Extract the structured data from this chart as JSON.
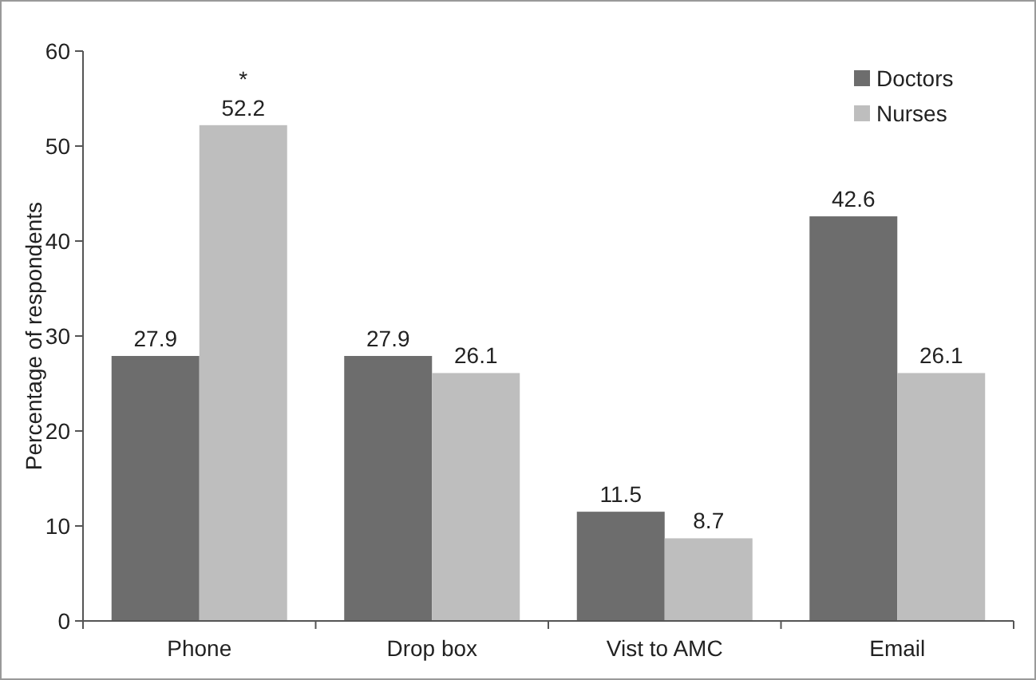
{
  "chart_data": {
    "type": "bar",
    "ylabel": "Percentage of respondents",
    "categories": [
      "Phone",
      "Drop box",
      "Vist to AMC",
      "Email"
    ],
    "series": [
      {
        "name": "Doctors",
        "color": "#6d6d6d",
        "values": [
          27.9,
          27.9,
          11.5,
          42.6
        ]
      },
      {
        "name": "Nurses",
        "color": "#bebebe",
        "values": [
          52.2,
          26.1,
          8.7,
          26.1
        ]
      }
    ],
    "ylim": [
      0,
      60
    ],
    "yticks": [
      0,
      10,
      20,
      30,
      40,
      50,
      60
    ],
    "data_labels": true,
    "legend": "top right",
    "grid": false,
    "annotations": [
      {
        "text": "*",
        "x": "Phone",
        "y": 52.2
      }
    ]
  }
}
